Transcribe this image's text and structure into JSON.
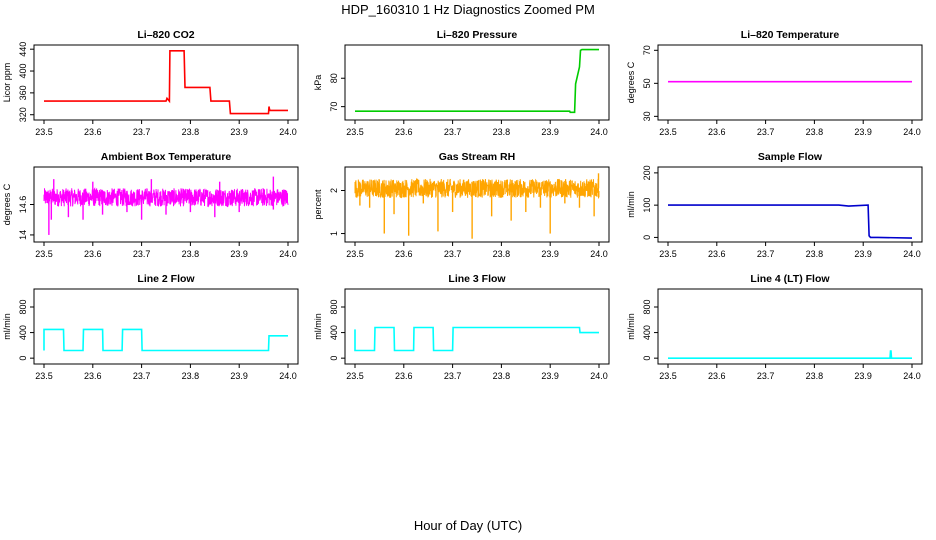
{
  "page": {
    "title": "HDP_160310  1 Hz Diagnostics Zoomed PM",
    "xlabel": "Hour of Day (UTC)"
  },
  "chart_data": [
    {
      "type": "line",
      "title": "Li–820 CO2",
      "ylabel": "Licor ppm",
      "xlim": [
        23.5,
        24.0
      ],
      "ylim": [
        314,
        444
      ],
      "xticks": [
        "23.5",
        "23.6",
        "23.7",
        "23.8",
        "23.9",
        "24.0"
      ],
      "yticks": [
        320,
        360,
        400,
        440
      ],
      "color": "#ff0000",
      "series": [
        {
          "x": [
            23.5,
            23.75,
            23.752,
            23.757,
            23.758,
            23.787,
            23.789,
            23.84,
            23.842,
            23.88,
            23.882,
            23.96,
            23.961,
            23.962,
            23.963,
            24.0
          ],
          "y": [
            345,
            345,
            350,
            345,
            437,
            437,
            370,
            370,
            345,
            345,
            322,
            322,
            335,
            330,
            328,
            328
          ]
        }
      ]
    },
    {
      "type": "line",
      "title": "Li–820 Pressure",
      "ylabel": "kPa",
      "xlim": [
        23.5,
        24.0
      ],
      "ylim": [
        66,
        91
      ],
      "xticks": [
        "23.5",
        "23.6",
        "23.7",
        "23.8",
        "23.9",
        "24.0"
      ],
      "yticks": [
        70,
        80
      ],
      "color": "#00cc00",
      "series": [
        {
          "x": [
            23.5,
            23.94,
            23.941,
            23.95,
            23.952,
            23.96,
            23.962,
            23.965,
            24.0
          ],
          "y": [
            68.4,
            68.4,
            68.0,
            68.0,
            78,
            84,
            89.8,
            90.1,
            90.1
          ]
        }
      ]
    },
    {
      "type": "line",
      "title": "Li–820 Temperature",
      "ylabel": "degrees C",
      "xlim": [
        23.5,
        24.0
      ],
      "ylim": [
        29,
        72
      ],
      "xticks": [
        "23.5",
        "23.6",
        "23.7",
        "23.8",
        "23.9",
        "24.0"
      ],
      "yticks": [
        30,
        50,
        70
      ],
      "color": "#ff00ff",
      "series": [
        {
          "x": [
            23.5,
            24.0
          ],
          "y": [
            51,
            51
          ]
        }
      ]
    },
    {
      "type": "line",
      "title": "Ambient Box Temperature",
      "ylabel": "degrees C",
      "xlim": [
        23.5,
        24.0
      ],
      "ylim": [
        13.9,
        15.3
      ],
      "xticks": [
        "23.5",
        "23.6",
        "23.7",
        "23.8",
        "23.9",
        "24.0"
      ],
      "yticks": [
        14.0,
        14.6
      ],
      "color": "#ff00ff",
      "noise": "band",
      "band": {
        "center": 14.74,
        "amp": 0.18,
        "spikes": [
          [
            23.51,
            14.0
          ],
          [
            23.515,
            14.3
          ],
          [
            23.55,
            14.35
          ],
          [
            23.58,
            14.3
          ],
          [
            23.62,
            14.4
          ],
          [
            23.67,
            14.45
          ],
          [
            23.7,
            14.3
          ],
          [
            23.75,
            14.4
          ],
          [
            23.8,
            14.45
          ],
          [
            23.85,
            14.35
          ],
          [
            23.9,
            14.45
          ],
          [
            23.97,
            14.5
          ],
          [
            23.52,
            15.1
          ],
          [
            23.6,
            15.05
          ],
          [
            23.72,
            15.1
          ],
          [
            23.86,
            15.05
          ],
          [
            23.97,
            15.15
          ]
        ]
      }
    },
    {
      "type": "line",
      "title": "Gas Stream RH",
      "ylabel": "percent",
      "xlim": [
        23.5,
        24.0
      ],
      "ylim": [
        0.85,
        2.5
      ],
      "xticks": [
        "23.5",
        "23.6",
        "23.7",
        "23.8",
        "23.9",
        "24.0"
      ],
      "yticks": [
        1.0,
        2.0
      ],
      "color": "#ffa500",
      "noise": "band",
      "band": {
        "center": 2.05,
        "amp": 0.22,
        "spikes": [
          [
            23.51,
            1.65
          ],
          [
            23.53,
            1.6
          ],
          [
            23.56,
            1.0
          ],
          [
            23.58,
            1.45
          ],
          [
            23.61,
            0.95
          ],
          [
            23.64,
            1.7
          ],
          [
            23.67,
            1.05
          ],
          [
            23.7,
            1.5
          ],
          [
            23.74,
            0.88
          ],
          [
            23.78,
            1.4
          ],
          [
            23.82,
            1.3
          ],
          [
            23.85,
            1.5
          ],
          [
            23.88,
            1.6
          ],
          [
            23.9,
            1.0
          ],
          [
            23.93,
            1.7
          ],
          [
            23.96,
            1.6
          ],
          [
            23.99,
            1.4
          ],
          [
            23.999,
            2.4
          ]
        ]
      }
    },
    {
      "type": "line",
      "title": "Sample Flow",
      "ylabel": "ml/min",
      "xlim": [
        23.5,
        24.0
      ],
      "ylim": [
        -8,
        212
      ],
      "xticks": [
        "23.5",
        "23.6",
        "23.7",
        "23.8",
        "23.9",
        "24.0"
      ],
      "yticks": [
        0,
        100,
        200
      ],
      "color": "#0000cc",
      "series": [
        {
          "x": [
            23.5,
            23.85,
            23.87,
            23.91,
            23.912,
            23.915,
            23.93,
            24.0
          ],
          "y": [
            100,
            100,
            97,
            100,
            5,
            0,
            0,
            -2
          ]
        }
      ]
    },
    {
      "type": "line",
      "title": "Line 2 Flow",
      "ylabel": "ml/min",
      "xlim": [
        23.5,
        24.0
      ],
      "ylim": [
        -60,
        1050
      ],
      "xticks": [
        "23.5",
        "23.6",
        "23.7",
        "23.8",
        "23.9",
        "24.0"
      ],
      "yticks": [
        0,
        400,
        800
      ],
      "color": "#00ffff",
      "series": [
        {
          "x": [
            23.5,
            23.5,
            23.54,
            23.541,
            23.58,
            23.581,
            23.62,
            23.621,
            23.66,
            23.661,
            23.7,
            23.701,
            23.96,
            23.961,
            24.0
          ],
          "y": [
            120,
            450,
            450,
            120,
            120,
            450,
            450,
            120,
            120,
            450,
            450,
            120,
            120,
            350,
            350
          ]
        }
      ]
    },
    {
      "type": "line",
      "title": "Line 3 Flow",
      "ylabel": "ml/min",
      "xlim": [
        23.5,
        24.0
      ],
      "ylim": [
        -60,
        1050
      ],
      "xticks": [
        "23.5",
        "23.6",
        "23.7",
        "23.8",
        "23.9",
        "24.0"
      ],
      "yticks": [
        0,
        400,
        800
      ],
      "color": "#00ffff",
      "series": [
        {
          "x": [
            23.5,
            23.5,
            23.501,
            23.54,
            23.541,
            23.58,
            23.581,
            23.62,
            23.621,
            23.66,
            23.661,
            23.7,
            23.701,
            23.96,
            23.961,
            24.0
          ],
          "y": [
            450,
            120,
            120,
            120,
            480,
            480,
            120,
            120,
            480,
            480,
            120,
            120,
            480,
            480,
            400,
            400
          ]
        }
      ]
    },
    {
      "type": "line",
      "title": "Line 4 (LT) Flow",
      "ylabel": "ml/min",
      "xlim": [
        23.5,
        24.0
      ],
      "ylim": [
        -60,
        1050
      ],
      "xticks": [
        "23.5",
        "23.6",
        "23.7",
        "23.8",
        "23.9",
        "24.0"
      ],
      "yticks": [
        0,
        400,
        800
      ],
      "color": "#00ffff",
      "series": [
        {
          "x": [
            23.5,
            23.955,
            23.956,
            23.957,
            23.958,
            24.0
          ],
          "y": [
            0,
            0,
            110,
            110,
            0,
            0
          ]
        }
      ]
    }
  ]
}
